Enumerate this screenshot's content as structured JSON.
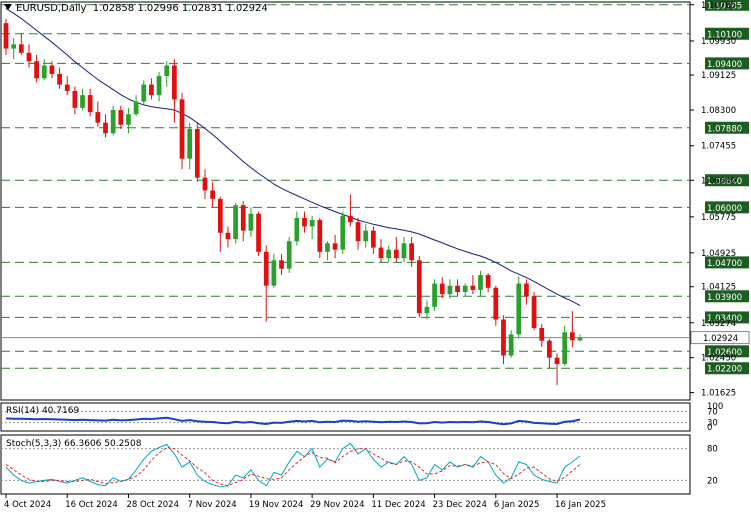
{
  "header": {
    "symbol": "EURUSD,Daily",
    "ohlc": "1.02858 1.02996 1.02831 1.02924"
  },
  "rsi_panel": {
    "label": "RSI(14) 40.7169",
    "levels": [
      "70",
      "30",
      "0"
    ],
    "top_label": "100"
  },
  "stoch_panel": {
    "label": "Stoch(5,3,3) 66.3606 50.2508",
    "levels": [
      "80",
      "20"
    ]
  },
  "colors": {
    "bull": "#2ca02c",
    "bear": "#e01010",
    "ma": "#1a1a8c",
    "level_line": "#2e7d32",
    "level_label_bg": "#1b5e20",
    "price_line": "#888888",
    "rsi": "#1f3fbf",
    "stoch_main": "#00a8c8",
    "stoch_signal": "#e03030",
    "grid": "#9a9a9a"
  },
  "chart_data": {
    "type": "candlestick",
    "symbol": "EURUSD",
    "timeframe": "Daily",
    "current_price": 1.02924,
    "ylim": [
      1.0145,
      1.1085
    ],
    "y_ticks": [
      "1.10785",
      "1.09930",
      "1.09125",
      "1.08300",
      "1.07455",
      "1.06640",
      "1.05775",
      "1.04925",
      "1.04125",
      "1.03274",
      "1.02450",
      "1.01625"
    ],
    "horizontal_levels": [
      "1.10785",
      "1.10100",
      "1.09400",
      "1.07880",
      "1.06640",
      "1.06000",
      "1.04700",
      "1.03900",
      "1.03400",
      "1.02600",
      "1.02200"
    ],
    "x_labels": [
      "4 Oct 2024",
      "16 Oct 2024",
      "28 Oct 2024",
      "7 Nov 2024",
      "19 Nov 2024",
      "29 Nov 2024",
      "11 Dec 2024",
      "23 Dec 2024",
      "6 Jan 2025",
      "16 Jan 2025"
    ],
    "candles": [
      [
        1.1035,
        1.1045,
        1.096,
        1.0975
      ],
      [
        1.0975,
        1.1,
        1.095,
        1.0985
      ],
      [
        1.0985,
        1.101,
        1.096,
        1.0965
      ],
      [
        1.0965,
        1.0985,
        1.093,
        1.0945
      ],
      [
        1.0945,
        1.096,
        1.0895,
        1.0905
      ],
      [
        1.0905,
        1.095,
        1.09,
        1.0935
      ],
      [
        1.0935,
        1.0945,
        1.0905,
        1.0915
      ],
      [
        1.0915,
        1.093,
        1.088,
        1.089
      ],
      [
        1.089,
        1.091,
        1.0865,
        1.0875
      ],
      [
        1.0875,
        1.0885,
        1.082,
        1.0835
      ],
      [
        1.0835,
        1.088,
        1.083,
        1.0865
      ],
      [
        1.0865,
        1.088,
        1.0815,
        1.0825
      ],
      [
        1.0825,
        1.085,
        1.079,
        1.08
      ],
      [
        1.08,
        1.082,
        1.0765,
        1.0775
      ],
      [
        1.0775,
        1.084,
        1.077,
        1.083
      ],
      [
        1.083,
        1.084,
        1.0785,
        1.0795
      ],
      [
        1.0795,
        1.0835,
        1.0775,
        1.082
      ],
      [
        1.082,
        1.0865,
        1.0815,
        1.085
      ],
      [
        1.085,
        1.09,
        1.084,
        1.089
      ],
      [
        1.089,
        1.0905,
        1.0855,
        1.0865
      ],
      [
        1.0865,
        1.092,
        1.085,
        1.091
      ],
      [
        1.091,
        1.0945,
        1.0885,
        1.0935
      ],
      [
        1.0935,
        1.095,
        1.08,
        1.0855
      ],
      [
        1.0855,
        1.087,
        1.069,
        1.0715
      ],
      [
        1.0715,
        1.08,
        1.069,
        1.0785
      ],
      [
        1.0785,
        1.08,
        1.066,
        1.067
      ],
      [
        1.067,
        1.069,
        1.062,
        1.064
      ],
      [
        1.064,
        1.066,
        1.06,
        1.062
      ],
      [
        1.062,
        1.0625,
        1.0495,
        1.054
      ],
      [
        1.054,
        1.0555,
        1.0505,
        1.0525
      ],
      [
        1.0525,
        1.061,
        1.0515,
        1.0605
      ],
      [
        1.0605,
        1.0615,
        1.052,
        1.0545
      ],
      [
        1.0545,
        1.06,
        1.053,
        1.0585
      ],
      [
        1.0585,
        1.059,
        1.0485,
        1.0495
      ],
      [
        1.0495,
        1.051,
        1.033,
        1.0415
      ],
      [
        1.0415,
        1.049,
        1.041,
        1.0475
      ],
      [
        1.0475,
        1.049,
        1.044,
        1.0455
      ],
      [
        1.0455,
        1.053,
        1.0445,
        1.052
      ],
      [
        1.052,
        1.059,
        1.051,
        1.0575
      ],
      [
        1.0575,
        1.059,
        1.054,
        1.0555
      ],
      [
        1.0555,
        1.058,
        1.0525,
        1.057
      ],
      [
        1.057,
        1.0575,
        1.048,
        1.0495
      ],
      [
        1.0495,
        1.052,
        1.0475,
        1.0515
      ],
      [
        1.0515,
        1.0535,
        1.048,
        1.05
      ],
      [
        1.05,
        1.059,
        1.049,
        1.058
      ],
      [
        1.058,
        1.063,
        1.0555,
        1.0565
      ],
      [
        1.0565,
        1.0575,
        1.05,
        1.052
      ],
      [
        1.052,
        1.056,
        1.0505,
        1.0545
      ],
      [
        1.0545,
        1.0555,
        1.049,
        1.0505
      ],
      [
        1.0505,
        1.0525,
        1.047,
        1.048
      ],
      [
        1.048,
        1.051,
        1.047,
        1.05
      ],
      [
        1.05,
        1.053,
        1.047,
        1.048
      ],
      [
        1.048,
        1.053,
        1.047,
        1.0515
      ],
      [
        1.0515,
        1.053,
        1.046,
        1.0475
      ],
      [
        1.0475,
        1.0485,
        1.034,
        1.035
      ],
      [
        1.035,
        1.038,
        1.0335,
        1.0365
      ],
      [
        1.0365,
        1.043,
        1.0355,
        1.042
      ],
      [
        1.042,
        1.0435,
        1.0385,
        1.0395
      ],
      [
        1.0395,
        1.043,
        1.0385,
        1.0415
      ],
      [
        1.0415,
        1.043,
        1.039,
        1.04
      ],
      [
        1.04,
        1.042,
        1.039,
        1.0415
      ],
      [
        1.0415,
        1.044,
        1.0395,
        1.0405
      ],
      [
        1.0405,
        1.045,
        1.039,
        1.044
      ],
      [
        1.044,
        1.0445,
        1.04,
        1.041
      ],
      [
        1.041,
        1.0415,
        1.032,
        1.0335
      ],
      [
        1.0335,
        1.0345,
        1.023,
        1.025
      ],
      [
        1.025,
        1.031,
        1.0245,
        1.03
      ],
      [
        1.03,
        1.0437,
        1.029,
        1.042
      ],
      [
        1.042,
        1.043,
        1.037,
        1.039
      ],
      [
        1.039,
        1.04,
        1.031,
        1.0315
      ],
      [
        1.0315,
        1.0325,
        1.027,
        1.0285
      ],
      [
        1.0285,
        1.029,
        1.022,
        1.0245
      ],
      [
        1.0245,
        1.0255,
        1.018,
        1.023
      ],
      [
        1.023,
        1.032,
        1.0225,
        1.0305
      ],
      [
        1.0305,
        1.0355,
        1.027,
        1.0286
      ],
      [
        1.02858,
        1.02996,
        1.02831,
        1.02924
      ]
    ],
    "moving_average": [
      1.107,
      1.1058,
      1.1046,
      1.1032,
      1.1018,
      1.1004,
      1.099,
      1.0975,
      1.096,
      1.0944,
      1.093,
      1.0916,
      1.0902,
      1.089,
      1.0878,
      1.0866,
      1.0856,
      1.0848,
      1.0842,
      1.0838,
      1.0835,
      1.0833,
      1.083,
      1.0822,
      1.0812,
      1.08,
      1.0786,
      1.0772,
      1.0756,
      1.074,
      1.0724,
      1.0708,
      1.0694,
      1.068,
      1.0668,
      1.0655,
      1.0645,
      1.0636,
      1.0628,
      1.062,
      1.0612,
      1.0604,
      1.0597,
      1.059,
      1.0583,
      1.0577,
      1.057,
      1.0565,
      1.056,
      1.0556,
      1.0552,
      1.0549,
      1.0546,
      1.0542,
      1.0537,
      1.053,
      1.0523,
      1.0516,
      1.0509,
      1.0502,
      1.0496,
      1.049,
      1.0485,
      1.0478,
      1.047,
      1.046,
      1.045,
      1.0442,
      1.0434,
      1.0425,
      1.0415,
      1.0405,
      1.0395,
      1.0386,
      1.0378,
      1.0368
    ],
    "rsi": [
      45,
      44,
      44,
      43,
      42,
      43,
      42,
      41,
      40,
      39,
      40,
      39,
      38,
      37,
      40,
      38,
      39,
      41,
      44,
      43,
      45,
      47,
      42,
      36,
      39,
      35,
      33,
      32,
      29,
      28,
      33,
      30,
      32,
      28,
      25,
      30,
      29,
      33,
      36,
      34,
      36,
      31,
      33,
      32,
      37,
      36,
      33,
      35,
      33,
      31,
      33,
      32,
      34,
      32,
      27,
      28,
      32,
      30,
      32,
      31,
      32,
      31,
      34,
      32,
      28,
      24,
      27,
      36,
      34,
      29,
      28,
      26,
      25,
      33,
      35,
      41
    ],
    "stoch_main": [
      45,
      30,
      20,
      15,
      18,
      20,
      22,
      18,
      15,
      20,
      25,
      18,
      12,
      10,
      25,
      18,
      22,
      40,
      60,
      75,
      82,
      88,
      70,
      45,
      55,
      30,
      18,
      12,
      8,
      10,
      30,
      25,
      40,
      20,
      10,
      35,
      30,
      55,
      75,
      65,
      80,
      45,
      60,
      55,
      80,
      90,
      70,
      80,
      60,
      45,
      55,
      50,
      65,
      50,
      20,
      25,
      50,
      40,
      55,
      45,
      50,
      45,
      65,
      55,
      30,
      15,
      25,
      55,
      50,
      30,
      22,
      18,
      15,
      45,
      55,
      66
    ],
    "stoch_signal": [
      50,
      40,
      30,
      22,
      18,
      18,
      20,
      20,
      18,
      18,
      20,
      22,
      18,
      14,
      16,
      18,
      22,
      28,
      40,
      58,
      72,
      82,
      80,
      68,
      57,
      44,
      34,
      20,
      13,
      10,
      16,
      22,
      32,
      28,
      23,
      22,
      25,
      40,
      53,
      65,
      73,
      63,
      62,
      53,
      65,
      75,
      80,
      80,
      70,
      62,
      53,
      50,
      57,
      55,
      45,
      32,
      32,
      38,
      48,
      47,
      50,
      47,
      53,
      55,
      50,
      33,
      23,
      32,
      43,
      45,
      34,
      23,
      18,
      26,
      38,
      50
    ]
  }
}
